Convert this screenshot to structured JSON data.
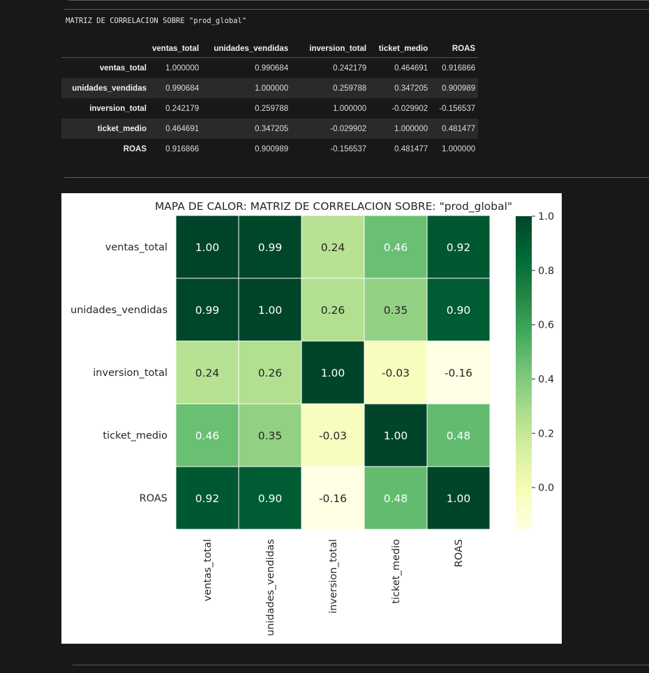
{
  "output": {
    "title": "MATRIZ DE CORRELACION SOBRE \"prod_global\""
  },
  "table": {
    "columns": [
      "ventas_total",
      "unidades_vendidas",
      "inversion_total",
      "ticket_medio",
      "ROAS"
    ],
    "rows": [
      {
        "label": "ventas_total",
        "values": [
          "1.000000",
          "0.990684",
          "0.242179",
          "0.464691",
          "0.916866"
        ]
      },
      {
        "label": "unidades_vendidas",
        "values": [
          "0.990684",
          "1.000000",
          "0.259788",
          "0.347205",
          "0.900989"
        ]
      },
      {
        "label": "inversion_total",
        "values": [
          "0.242179",
          "0.259788",
          "1.000000",
          "-0.029902",
          "-0.156537"
        ]
      },
      {
        "label": "ticket_medio",
        "values": [
          "0.464691",
          "0.347205",
          "-0.029902",
          "1.000000",
          "0.481477"
        ]
      },
      {
        "label": "ROAS",
        "values": [
          "0.916866",
          "0.900989",
          "-0.156537",
          "0.481477",
          "1.000000"
        ]
      }
    ]
  },
  "chart_data": {
    "type": "heatmap",
    "title": "MAPA DE CALOR: MATRIZ DE CORRELACION SOBRE: \"prod_global\"",
    "x_labels": [
      "ventas_total",
      "unidades_vendidas",
      "inversion_total",
      "ticket_medio",
      "ROAS"
    ],
    "y_labels": [
      "ventas_total",
      "unidades_vendidas",
      "inversion_total",
      "ticket_medio",
      "ROAS"
    ],
    "values": [
      [
        1.0,
        0.99,
        0.24,
        0.46,
        0.92
      ],
      [
        0.99,
        1.0,
        0.26,
        0.35,
        0.9
      ],
      [
        0.24,
        0.26,
        1.0,
        -0.03,
        -0.16
      ],
      [
        0.46,
        0.35,
        -0.03,
        1.0,
        0.48
      ],
      [
        0.92,
        0.9,
        -0.16,
        0.48,
        1.0
      ]
    ],
    "annotations": [
      [
        "1.00",
        "0.99",
        "0.24",
        "0.46",
        "0.92"
      ],
      [
        "0.99",
        "1.00",
        "0.26",
        "0.35",
        "0.90"
      ],
      [
        "0.24",
        "0.26",
        "1.00",
        "-0.03",
        "-0.16"
      ],
      [
        "0.46",
        "0.35",
        "-0.03",
        "1.00",
        "0.48"
      ],
      [
        "0.92",
        "0.90",
        "-0.16",
        "0.48",
        "1.00"
      ]
    ],
    "colormap": "YlGn",
    "color_range": [
      -0.156537,
      1.0
    ],
    "colorbar_ticks": [
      "1.0",
      "0.8",
      "0.6",
      "0.4",
      "0.2",
      "0.0"
    ],
    "colorbar_tick_values": [
      1.0,
      0.8,
      0.6,
      0.4,
      0.2,
      0.0
    ]
  }
}
